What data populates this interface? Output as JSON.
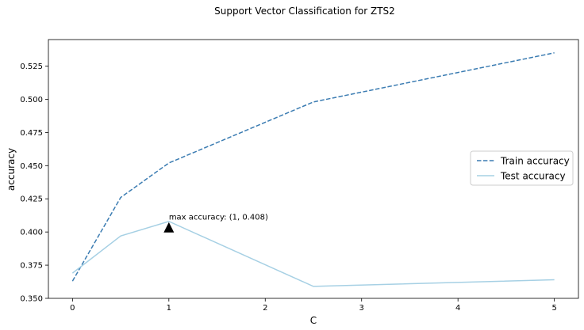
{
  "chart_data": {
    "type": "line",
    "title": "Support Vector Classification for ZTS2",
    "xlabel": "C",
    "ylabel": "accuracy",
    "xlim": [
      -0.25,
      5.25
    ],
    "ylim": [
      0.35,
      0.545
    ],
    "x_ticks": [
      0,
      1,
      2,
      3,
      4,
      5
    ],
    "x_tick_labels": [
      "0",
      "1",
      "2",
      "3",
      "4",
      "5"
    ],
    "y_ticks": [
      0.35,
      0.375,
      0.4,
      0.425,
      0.45,
      0.475,
      0.5,
      0.525
    ],
    "y_tick_labels": [
      "0.350",
      "0.375",
      "0.400",
      "0.425",
      "0.450",
      "0.475",
      "0.500",
      "0.525"
    ],
    "grid": false,
    "legend_position": "center-right",
    "series": [
      {
        "name": "Train accuracy",
        "style": "dashed",
        "color": "#3b7cb2",
        "x": [
          0,
          0.5,
          1,
          2.5,
          5
        ],
        "values": [
          0.363,
          0.426,
          0.452,
          0.498,
          0.535
        ]
      },
      {
        "name": "Test accuracy",
        "style": "solid",
        "color": "#a6d0e4",
        "x": [
          0,
          0.5,
          1,
          2.5,
          5
        ],
        "values": [
          0.369,
          0.397,
          0.408,
          0.359,
          0.364
        ]
      }
    ],
    "annotations": [
      {
        "text": "max accuracy: (1, 0.408)",
        "x": 1,
        "y": 0.408,
        "marker": "triangle-up"
      }
    ]
  }
}
